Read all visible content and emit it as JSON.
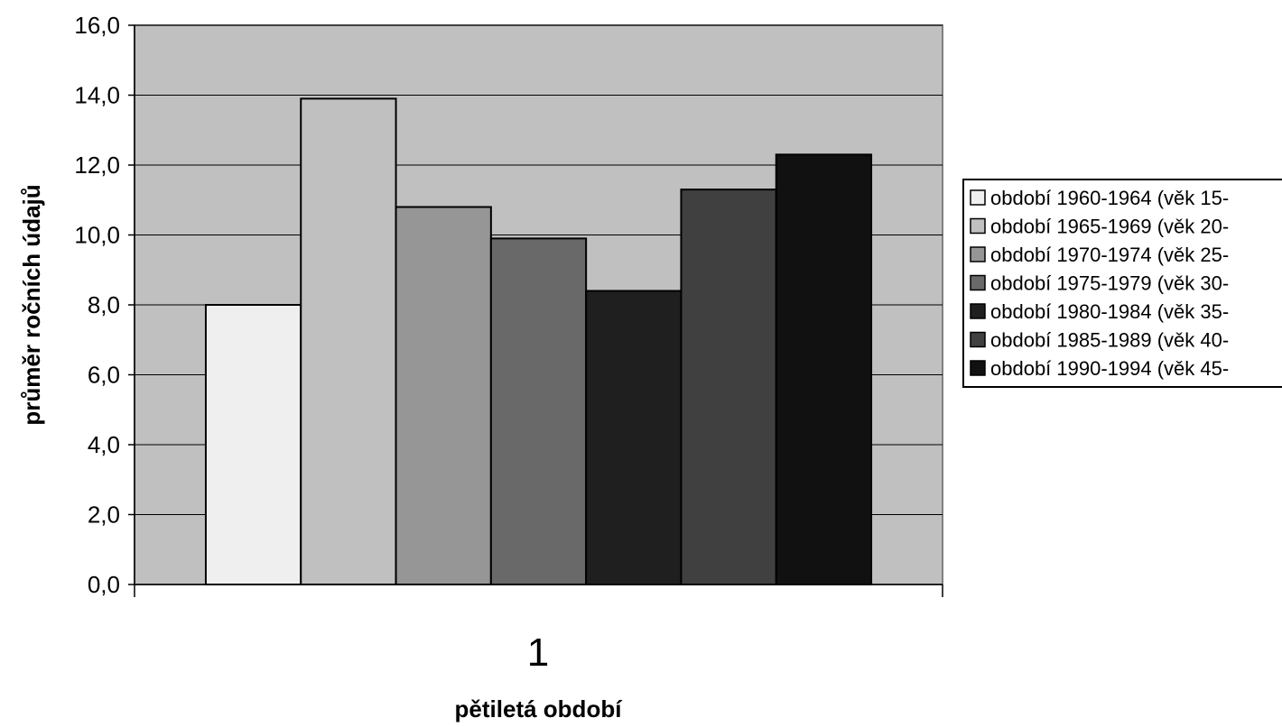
{
  "chart_data": {
    "type": "bar",
    "categories": [
      "1"
    ],
    "series": [
      {
        "name": "období 1960-1964 (věk 15-",
        "values": [
          8.0
        ],
        "color": "#efefef"
      },
      {
        "name": "období 1965-1969 (věk 20-",
        "values": [
          13.9
        ],
        "color": "#c0c0c0"
      },
      {
        "name": "období 1970-1974 (věk 25-",
        "values": [
          10.8
        ],
        "color": "#969696"
      },
      {
        "name": "období 1975-1979 (věk 30-",
        "values": [
          9.9
        ],
        "color": "#696969"
      },
      {
        "name": "období 1980-1984 (věk 35-",
        "values": [
          8.4
        ],
        "color": "#1f1f1f"
      },
      {
        "name": "období 1985-1989 (věk 40-",
        "values": [
          11.3
        ],
        "color": "#404040"
      },
      {
        "name": "období 1990-1994 (věk 45-",
        "values": [
          12.3
        ],
        "color": "#111111"
      }
    ],
    "xlabel": "pětiletá období",
    "ylabel": "průměr ročních údajů",
    "ylim": [
      0,
      16
    ],
    "yticks": [
      "0,0",
      "2,0",
      "4,0",
      "6,0",
      "8,0",
      "10,0",
      "12,0",
      "14,0",
      "16,0"
    ],
    "grid": true,
    "legend_position": "right",
    "plot_background": "#c0c0c0"
  }
}
